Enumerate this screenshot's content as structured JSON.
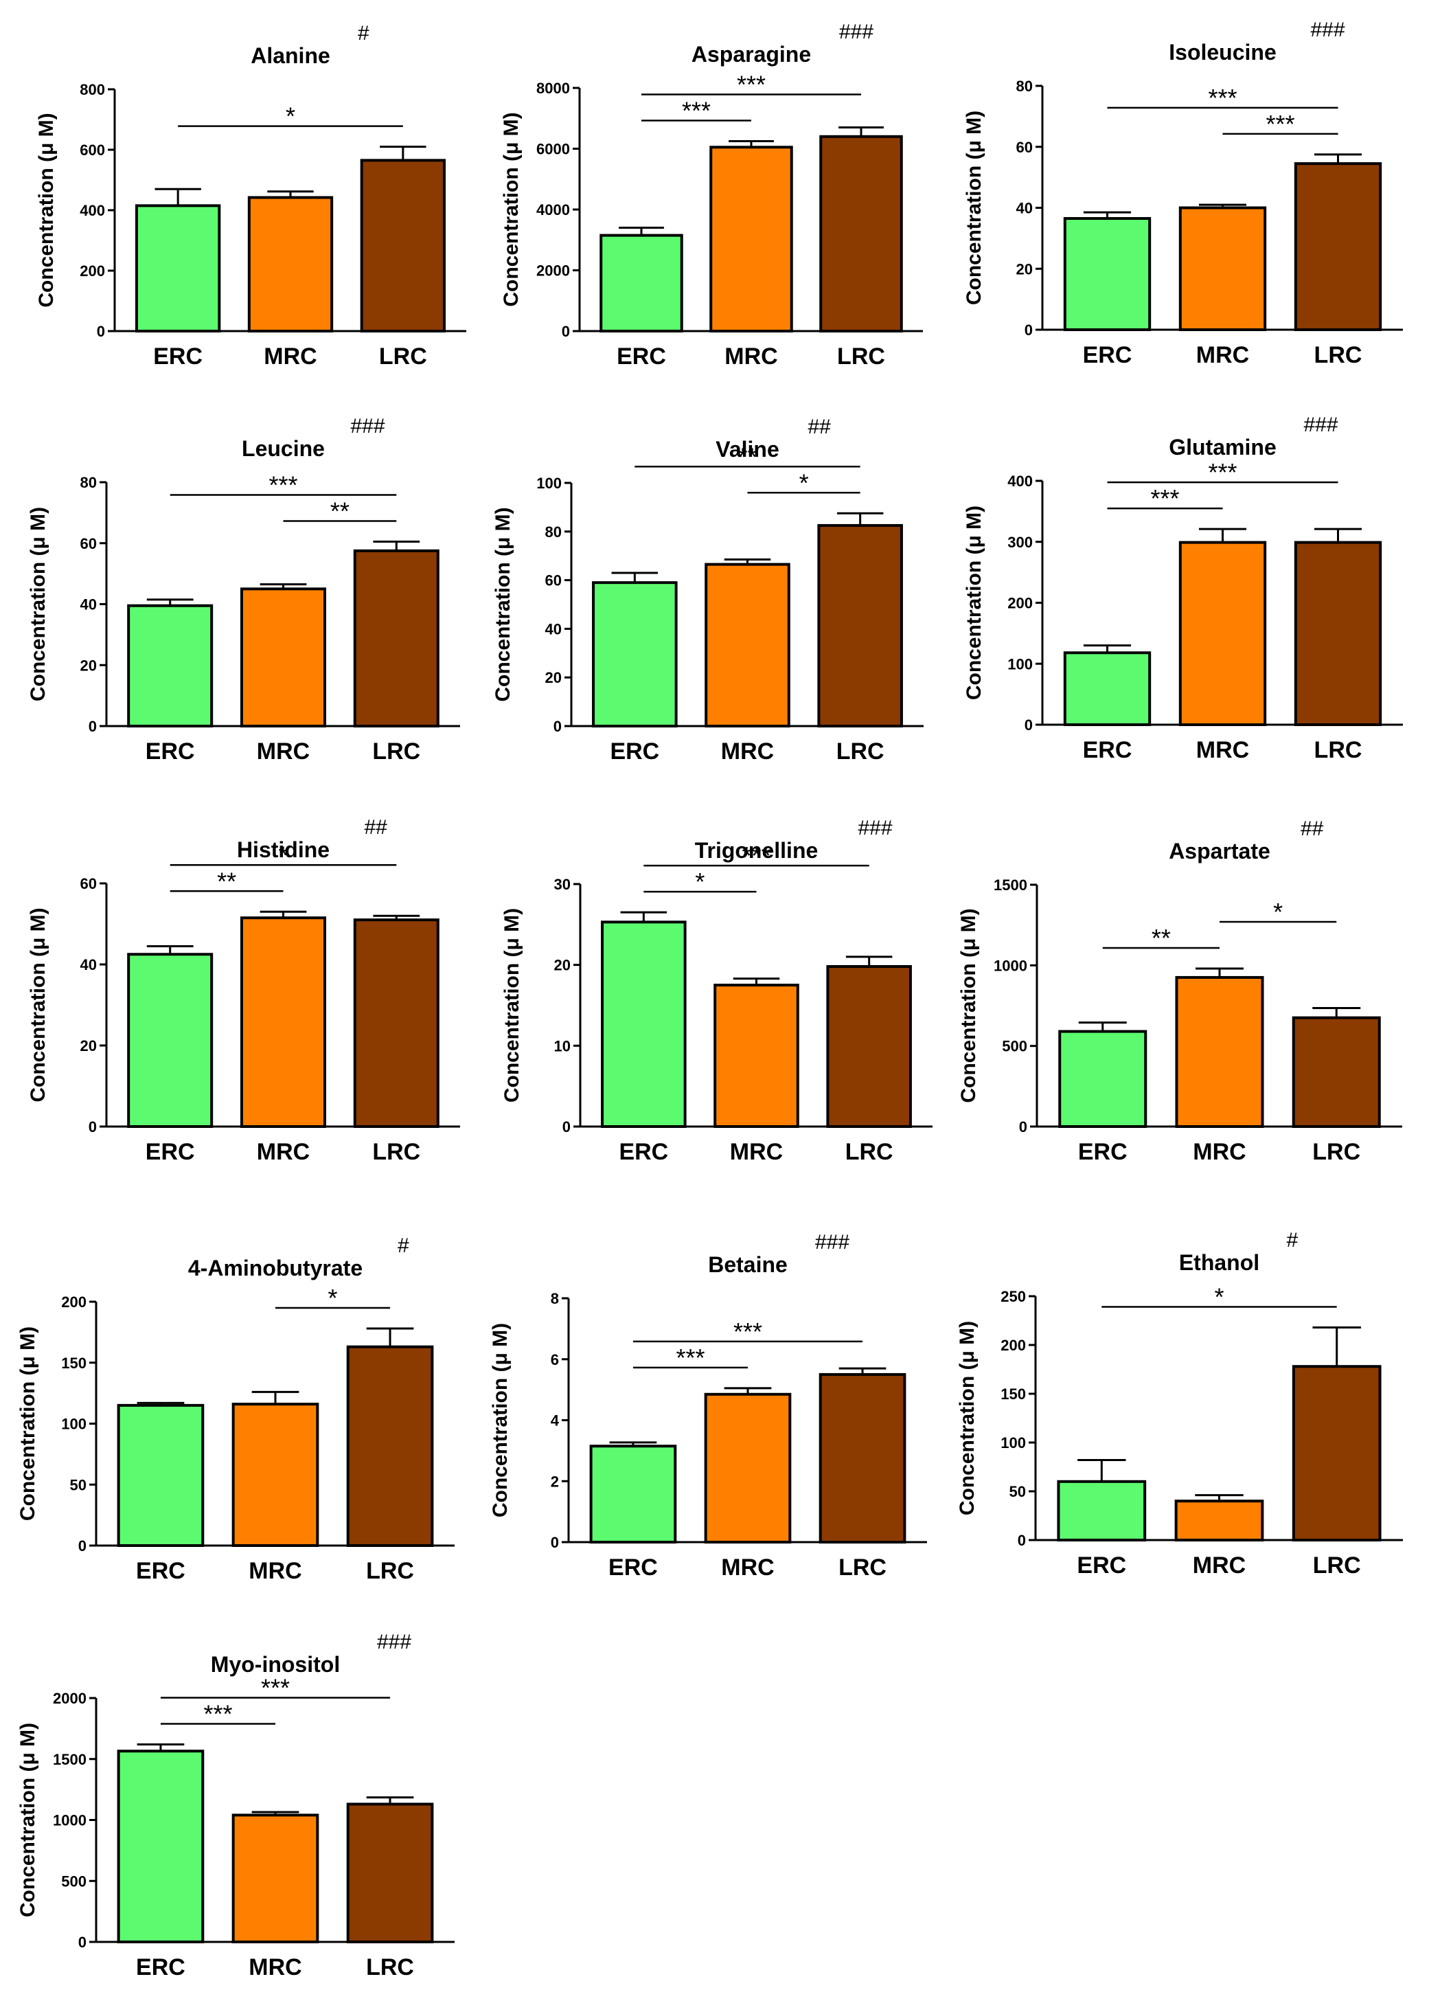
{
  "figure": {
    "categories": [
      "ERC",
      "MRC",
      "LRC"
    ],
    "colors": {
      "ERC": "#5cfb6f",
      "MRC": "#ff8000",
      "LRC": "#8b3a00",
      "stroke": "#000000"
    }
  },
  "chart_data": [
    {
      "type": "bar",
      "title": "Alanine",
      "hash": "#",
      "ylabel": "Concentration (μ M)",
      "ylim": [
        0,
        800
      ],
      "yticks": [
        "0",
        "200",
        "400",
        "600",
        "800"
      ],
      "categories": [
        "ERC",
        "MRC",
        "LRC"
      ],
      "values": [
        415,
        442,
        565
      ],
      "errors": [
        55,
        20,
        45
      ],
      "significance": [
        {
          "from": 0,
          "to": 2,
          "label": "*"
        }
      ]
    },
    {
      "type": "bar",
      "title": "Asparagine",
      "hash": "###",
      "ylabel": "Concentration (μ M)",
      "ylim": [
        0,
        8000
      ],
      "yticks": [
        "0",
        "2000",
        "4000",
        "6000",
        "8000"
      ],
      "categories": [
        "ERC",
        "MRC",
        "LRC"
      ],
      "values": [
        3150,
        6050,
        6400
      ],
      "errors": [
        250,
        200,
        300
      ],
      "significance": [
        {
          "from": 0,
          "to": 1,
          "label": "***"
        },
        {
          "from": 0,
          "to": 2,
          "label": "***"
        }
      ]
    },
    {
      "type": "bar",
      "title": "Isoleucine",
      "hash": "###",
      "ylabel": "Concentration (μ M)",
      "ylim": [
        0,
        80
      ],
      "yticks": [
        "0",
        "20",
        "40",
        "60",
        "80"
      ],
      "categories": [
        "ERC",
        "MRC",
        "LRC"
      ],
      "values": [
        36.5,
        40,
        54.5
      ],
      "errors": [
        2,
        1,
        3
      ],
      "significance": [
        {
          "from": 1,
          "to": 2,
          "label": "***"
        },
        {
          "from": 0,
          "to": 2,
          "label": "***"
        }
      ]
    },
    {
      "type": "bar",
      "title": "Leucine",
      "hash": "###",
      "ylabel": "Concentration (μ M)",
      "ylim": [
        0,
        80
      ],
      "yticks": [
        "0",
        "20",
        "40",
        "60",
        "80"
      ],
      "categories": [
        "ERC",
        "MRC",
        "LRC"
      ],
      "values": [
        39.5,
        45,
        57.5
      ],
      "errors": [
        2,
        1.5,
        3
      ],
      "significance": [
        {
          "from": 1,
          "to": 2,
          "label": "**"
        },
        {
          "from": 0,
          "to": 2,
          "label": "***"
        }
      ]
    },
    {
      "type": "bar",
      "title": "Valine",
      "hash": "##",
      "ylabel": "Concentration (μ M)",
      "ylim": [
        0,
        100
      ],
      "yticks": [
        "0",
        "20",
        "40",
        "60",
        "80",
        "100"
      ],
      "categories": [
        "ERC",
        "MRC",
        "LRC"
      ],
      "values": [
        59,
        66.5,
        82.5
      ],
      "errors": [
        4,
        2,
        5
      ],
      "significance": [
        {
          "from": 1,
          "to": 2,
          "label": "*"
        },
        {
          "from": 0,
          "to": 2,
          "label": "**"
        }
      ]
    },
    {
      "type": "bar",
      "title": "Glutamine",
      "hash": "###",
      "ylabel": "Concentration (μ M)",
      "ylim": [
        0,
        400
      ],
      "yticks": [
        "0",
        "100",
        "200",
        "300",
        "400"
      ],
      "categories": [
        "ERC",
        "MRC",
        "LRC"
      ],
      "values": [
        118,
        299,
        299
      ],
      "errors": [
        12,
        22,
        22
      ],
      "significance": [
        {
          "from": 0,
          "to": 1,
          "label": "***"
        },
        {
          "from": 0,
          "to": 2,
          "label": "***"
        }
      ]
    },
    {
      "type": "bar",
      "title": "Histidine",
      "hash": "##",
      "ylabel": "Concentration (μ M)",
      "ylim": [
        0,
        60
      ],
      "yticks": [
        "0",
        "20",
        "40",
        "60"
      ],
      "categories": [
        "ERC",
        "MRC",
        "LRC"
      ],
      "values": [
        42.5,
        51.5,
        51
      ],
      "errors": [
        2,
        1.5,
        1
      ],
      "significance": [
        {
          "from": 0,
          "to": 1,
          "label": "**"
        },
        {
          "from": 0,
          "to": 2,
          "label": "*"
        }
      ]
    },
    {
      "type": "bar",
      "title": "Trigonelline",
      "hash": "###",
      "ylabel": "Concentration (μ M)",
      "ylim": [
        0,
        30
      ],
      "yticks": [
        "0",
        "10",
        "20",
        "30"
      ],
      "categories": [
        "ERC",
        "MRC",
        "LRC"
      ],
      "values": [
        25.3,
        17.5,
        19.8
      ],
      "errors": [
        1.2,
        0.8,
        1.2
      ],
      "significance": [
        {
          "from": 0,
          "to": 1,
          "label": "*"
        },
        {
          "from": 0,
          "to": 2,
          "label": "***"
        }
      ]
    },
    {
      "type": "bar",
      "title": "Aspartate",
      "hash": "##",
      "ylabel": "Concentration (μ M)",
      "ylim": [
        0,
        1500
      ],
      "yticks": [
        "0",
        "500",
        "1000",
        "1500"
      ],
      "categories": [
        "ERC",
        "MRC",
        "LRC"
      ],
      "values": [
        590,
        925,
        675
      ],
      "errors": [
        55,
        55,
        60
      ],
      "significance": [
        {
          "from": 0,
          "to": 1,
          "label": "**"
        },
        {
          "from": 1,
          "to": 2,
          "label": "*"
        }
      ]
    },
    {
      "type": "bar",
      "title": "4-Aminobutyrate",
      "hash": "#",
      "ylabel": "Concentration (μ M)",
      "ylim": [
        0,
        200
      ],
      "yticks": [
        "0",
        "50",
        "100",
        "150",
        "200"
      ],
      "categories": [
        "ERC",
        "MRC",
        "LRC"
      ],
      "values": [
        115,
        116,
        163
      ],
      "errors": [
        2,
        10,
        15
      ],
      "significance": [
        {
          "from": 1,
          "to": 2,
          "label": "*"
        }
      ]
    },
    {
      "type": "bar",
      "title": "Betaine",
      "hash": "###",
      "ylabel": "Concentration (μ M)",
      "ylim": [
        0,
        8
      ],
      "yticks": [
        "0",
        "2",
        "4",
        "6",
        "8"
      ],
      "categories": [
        "ERC",
        "MRC",
        "LRC"
      ],
      "values": [
        3.15,
        4.85,
        5.5
      ],
      "errors": [
        0.12,
        0.2,
        0.2
      ],
      "significance": [
        {
          "from": 0,
          "to": 1,
          "label": "***"
        },
        {
          "from": 0,
          "to": 2,
          "label": "***"
        }
      ]
    },
    {
      "type": "bar",
      "title": "Ethanol",
      "hash": "#",
      "ylabel": "Concentration (μ M)",
      "ylim": [
        0,
        250
      ],
      "yticks": [
        "0",
        "50",
        "100",
        "150",
        "200",
        "250"
      ],
      "categories": [
        "ERC",
        "MRC",
        "LRC"
      ],
      "values": [
        60,
        40,
        178
      ],
      "errors": [
        22,
        6,
        40
      ],
      "significance": [
        {
          "from": 0,
          "to": 2,
          "label": "*"
        }
      ]
    },
    {
      "type": "bar",
      "title": "Myo-inositol",
      "hash": "###",
      "ylabel": "Concentration (μ M)",
      "ylim": [
        0,
        2000
      ],
      "yticks": [
        "0",
        "500",
        "1000",
        "1500",
        "2000"
      ],
      "categories": [
        "ERC",
        "MRC",
        "LRC"
      ],
      "values": [
        1565,
        1040,
        1130
      ],
      "errors": [
        55,
        25,
        55
      ],
      "significance": [
        {
          "from": 0,
          "to": 1,
          "label": "***"
        },
        {
          "from": 0,
          "to": 2,
          "label": "***"
        }
      ]
    }
  ]
}
